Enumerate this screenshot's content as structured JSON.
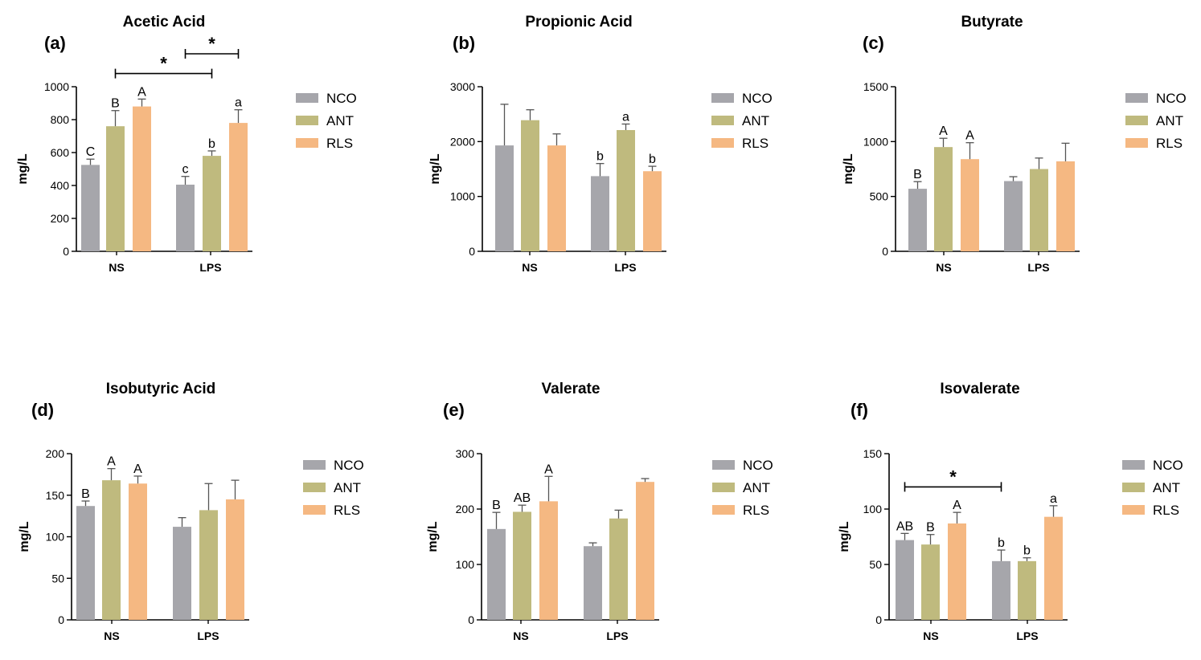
{
  "colors": {
    "NCO": "#a6a6ab",
    "ANT": "#bfba7e",
    "RLS": "#f5b882"
  },
  "legend": [
    "NCO",
    "ANT",
    "RLS"
  ],
  "chart_data": [
    {
      "type": "bar",
      "panel": "(a)",
      "title": "Acetic Acid",
      "ylabel": "mg/L",
      "categories": [
        "NS",
        "LPS"
      ],
      "ylim": [
        0,
        1000
      ],
      "yticks": [
        0,
        200,
        400,
        600,
        800,
        1000
      ],
      "series": [
        {
          "name": "NCO",
          "values": [
            525,
            405
          ],
          "errors": [
            35,
            50
          ],
          "letters": [
            "C",
            "c"
          ]
        },
        {
          "name": "ANT",
          "values": [
            760,
            580
          ],
          "errors": [
            95,
            30
          ],
          "letters": [
            "B",
            "b"
          ]
        },
        {
          "name": "RLS",
          "values": [
            880,
            780
          ],
          "errors": [
            45,
            80
          ],
          "letters": [
            "A",
            "a"
          ]
        }
      ],
      "brackets": [
        {
          "from": [
            "LPS",
            "NCO"
          ],
          "to": [
            "LPS",
            "RLS"
          ],
          "value": 1200,
          "label": "*"
        },
        {
          "from": [
            "NS",
            "ANT"
          ],
          "to": [
            "LPS",
            "ANT"
          ],
          "value": 1080,
          "label": "*"
        }
      ]
    },
    {
      "type": "bar",
      "panel": "(b)",
      "title": "Propionic Acid",
      "ylabel": "mg/L",
      "categories": [
        "NS",
        "LPS"
      ],
      "ylim": [
        0,
        3000
      ],
      "yticks": [
        0,
        1000,
        2000,
        3000
      ],
      "series": [
        {
          "name": "NCO",
          "values": [
            1930,
            1370
          ],
          "errors": [
            750,
            230
          ],
          "letters": [
            "",
            "b"
          ]
        },
        {
          "name": "ANT",
          "values": [
            2390,
            2210
          ],
          "errors": [
            190,
            110
          ],
          "letters": [
            "",
            "a"
          ]
        },
        {
          "name": "RLS",
          "values": [
            1930,
            1460
          ],
          "errors": [
            210,
            90
          ],
          "letters": [
            "",
            "b"
          ]
        }
      ],
      "brackets": []
    },
    {
      "type": "bar",
      "panel": "(c)",
      "title": "Butyrate",
      "ylabel": "mg/L",
      "categories": [
        "NS",
        "LPS"
      ],
      "ylim": [
        0,
        1500
      ],
      "yticks": [
        0,
        500,
        1000,
        1500
      ],
      "series": [
        {
          "name": "NCO",
          "values": [
            570,
            640
          ],
          "errors": [
            65,
            40
          ],
          "letters": [
            "B",
            ""
          ]
        },
        {
          "name": "ANT",
          "values": [
            950,
            750
          ],
          "errors": [
            80,
            100
          ],
          "letters": [
            "A",
            ""
          ]
        },
        {
          "name": "RLS",
          "values": [
            840,
            820
          ],
          "errors": [
            150,
            165
          ],
          "letters": [
            "A",
            ""
          ]
        }
      ],
      "brackets": []
    },
    {
      "type": "bar",
      "panel": "(d)",
      "title": "Isobutyric Acid",
      "ylabel": "mg/L",
      "categories": [
        "NS",
        "LPS"
      ],
      "ylim": [
        0,
        200
      ],
      "yticks": [
        0,
        50,
        100,
        150,
        200
      ],
      "series": [
        {
          "name": "NCO",
          "values": [
            137,
            112
          ],
          "errors": [
            6,
            11
          ],
          "letters": [
            "B",
            ""
          ]
        },
        {
          "name": "ANT",
          "values": [
            168,
            132
          ],
          "errors": [
            14,
            32
          ],
          "letters": [
            "A",
            ""
          ]
        },
        {
          "name": "RLS",
          "values": [
            164,
            145
          ],
          "errors": [
            9,
            23
          ],
          "letters": [
            "A",
            ""
          ]
        }
      ],
      "brackets": []
    },
    {
      "type": "bar",
      "panel": "(e)",
      "title": "Valerate",
      "ylabel": "mg/L",
      "categories": [
        "NS",
        "LPS"
      ],
      "ylim": [
        0,
        300
      ],
      "yticks": [
        0,
        100,
        200,
        300
      ],
      "series": [
        {
          "name": "NCO",
          "values": [
            164,
            133
          ],
          "errors": [
            30,
            6
          ],
          "letters": [
            "B",
            ""
          ]
        },
        {
          "name": "ANT",
          "values": [
            195,
            183
          ],
          "errors": [
            12,
            15
          ],
          "letters": [
            "AB",
            ""
          ]
        },
        {
          "name": "RLS",
          "values": [
            214,
            249
          ],
          "errors": [
            45,
            6
          ],
          "letters": [
            "A",
            ""
          ]
        }
      ],
      "brackets": []
    },
    {
      "type": "bar",
      "panel": "(f)",
      "title": "Isovalerate",
      "ylabel": "mg/L",
      "categories": [
        "NS",
        "LPS"
      ],
      "ylim": [
        0,
        150
      ],
      "yticks": [
        0,
        50,
        100,
        150
      ],
      "series": [
        {
          "name": "NCO",
          "values": [
            72,
            53
          ],
          "errors": [
            6,
            10
          ],
          "letters": [
            "AB",
            "b"
          ]
        },
        {
          "name": "ANT",
          "values": [
            68,
            53
          ],
          "errors": [
            9,
            3
          ],
          "letters": [
            "B",
            "b"
          ]
        },
        {
          "name": "RLS",
          "values": [
            87,
            93
          ],
          "errors": [
            10,
            10
          ],
          "letters": [
            "A",
            "a"
          ]
        }
      ],
      "brackets": [
        {
          "from": [
            "NS",
            "NCO"
          ],
          "to": [
            "LPS",
            "NCO"
          ],
          "value": 120,
          "label": "*"
        }
      ]
    }
  ]
}
